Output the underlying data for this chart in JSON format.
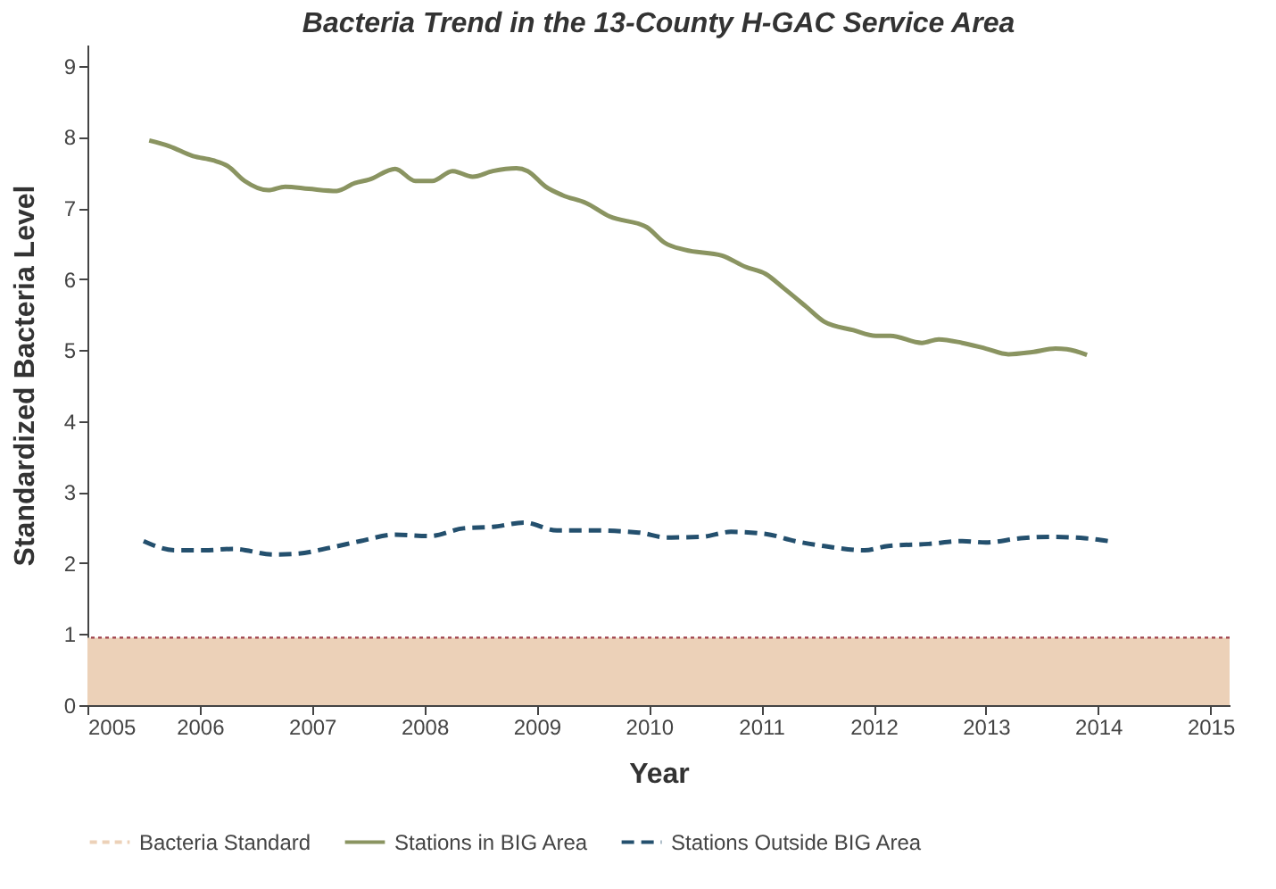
{
  "chart_data": {
    "type": "line",
    "title": "Bacteria Trend in the 13-County H-GAC Service Area",
    "xlabel": "Year",
    "ylabel": "Standardized Bacteria Level",
    "xlim": [
      2005,
      2015.17
    ],
    "xticks": [
      2005,
      2006,
      2007,
      2008,
      2009,
      2010,
      2011,
      2012,
      2013,
      2014,
      2015
    ],
    "ylim": [
      0,
      9.3
    ],
    "yticks": [
      0,
      1,
      2,
      3,
      4,
      5,
      6,
      7,
      8,
      9
    ],
    "grid": false,
    "legend": "bottom",
    "bands": [
      {
        "axis": "y",
        "from": 0,
        "to": 0.95,
        "label": "Bacteria Standard",
        "color": "#ecd1b8"
      }
    ],
    "ref_lines": [
      {
        "axis": "y",
        "value": 0.95,
        "color": "#a0404a",
        "line_style": "dotted"
      }
    ],
    "series": [
      {
        "name": "Stations in BIG Area",
        "color": "#8a9461",
        "line_style": "solid",
        "x": [
          2005.55,
          2005.73,
          2005.94,
          2006.12,
          2006.25,
          2006.4,
          2006.61,
          2006.76,
          2006.97,
          2007.22,
          2007.38,
          2007.51,
          2007.74,
          2007.92,
          2008.07,
          2008.25,
          2008.43,
          2008.61,
          2008.82,
          2008.92,
          2009.08,
          2009.23,
          2009.44,
          2009.65,
          2009.98,
          2010.14,
          2010.32,
          2010.65,
          2010.86,
          2011.04,
          2011.2,
          2011.4,
          2011.56,
          2011.82,
          2012.02,
          2012.15,
          2012.43,
          2012.58,
          2012.79,
          2013.0,
          2013.2,
          2013.41,
          2013.62,
          2013.72,
          2013.9
        ],
        "values": [
          7.95,
          7.87,
          7.73,
          7.67,
          7.59,
          7.38,
          7.25,
          7.3,
          7.27,
          7.24,
          7.35,
          7.4,
          7.55,
          7.38,
          7.38,
          7.52,
          7.44,
          7.52,
          7.56,
          7.52,
          7.3,
          7.18,
          7.07,
          6.88,
          6.73,
          6.51,
          6.41,
          6.33,
          6.17,
          6.07,
          5.87,
          5.61,
          5.4,
          5.28,
          5.2,
          5.2,
          5.1,
          5.15,
          5.1,
          5.02,
          4.94,
          4.97,
          5.02,
          5.01,
          4.93
        ]
      },
      {
        "name": "Stations Outside BIG Area",
        "color": "#24506e",
        "line_style": "dashed",
        "x": [
          2005.5,
          2005.78,
          2006.04,
          2006.3,
          2006.66,
          2006.86,
          2007.17,
          2007.43,
          2007.74,
          2008.05,
          2008.35,
          2008.61,
          2008.89,
          2009.18,
          2009.5,
          2009.91,
          2010.16,
          2010.47,
          2010.73,
          2011.04,
          2011.3,
          2011.56,
          2011.92,
          2012.13,
          2012.49,
          2012.79,
          2013.0,
          2013.31,
          2013.57,
          2013.88,
          2014.09
        ],
        "values": [
          2.31,
          2.18,
          2.18,
          2.2,
          2.12,
          2.13,
          2.22,
          2.31,
          2.4,
          2.38,
          2.49,
          2.51,
          2.57,
          2.46,
          2.46,
          2.43,
          2.36,
          2.37,
          2.44,
          2.41,
          2.31,
          2.24,
          2.18,
          2.24,
          2.27,
          2.31,
          2.29,
          2.35,
          2.37,
          2.35,
          2.31
        ]
      }
    ]
  }
}
